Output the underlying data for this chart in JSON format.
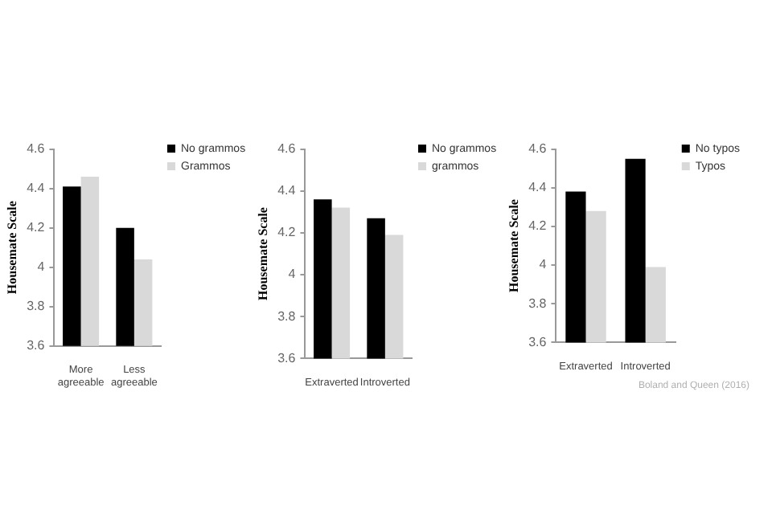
{
  "chart_data": [
    {
      "type": "bar",
      "ylabel": "Housemate Scale",
      "categories": [
        "More agreeable",
        "Less agreeable"
      ],
      "series": [
        {
          "name": "No grammos",
          "color": "#000000",
          "values": [
            4.41,
            4.2
          ]
        },
        {
          "name": "Grammos",
          "color": "#d9d9d9",
          "values": [
            4.46,
            4.04
          ]
        }
      ],
      "ylim": [
        3.6,
        4.6
      ],
      "yticks": [
        3.6,
        3.8,
        4,
        4.2,
        4.4,
        4.6
      ],
      "legend": "top right"
    },
    {
      "type": "bar",
      "ylabel": "Housemate Scale",
      "categories": [
        "Extraverted",
        "Introverted"
      ],
      "series": [
        {
          "name": "No grammos",
          "color": "#000000",
          "values": [
            4.36,
            4.27
          ]
        },
        {
          "name": "grammos",
          "color": "#d9d9d9",
          "values": [
            4.32,
            4.19
          ]
        }
      ],
      "ylim": [
        3.6,
        4.6
      ],
      "yticks": [
        3.6,
        3.8,
        4,
        4.2,
        4.4,
        4.6
      ],
      "legend": "top right"
    },
    {
      "type": "bar",
      "ylabel": "Housemate Scale",
      "categories": [
        "Extraverted",
        "Introverted"
      ],
      "series": [
        {
          "name": "No typos",
          "color": "#000000",
          "values": [
            4.38,
            4.55
          ]
        },
        {
          "name": "Typos",
          "color": "#d9d9d9",
          "values": [
            4.28,
            3.99
          ]
        }
      ],
      "ylim": [
        3.6,
        4.6
      ],
      "yticks": [
        3.6,
        3.8,
        4,
        4.2,
        4.4,
        4.6
      ],
      "legend": "top right",
      "annotations": [
        "Boland and Queen (2016)"
      ]
    }
  ]
}
